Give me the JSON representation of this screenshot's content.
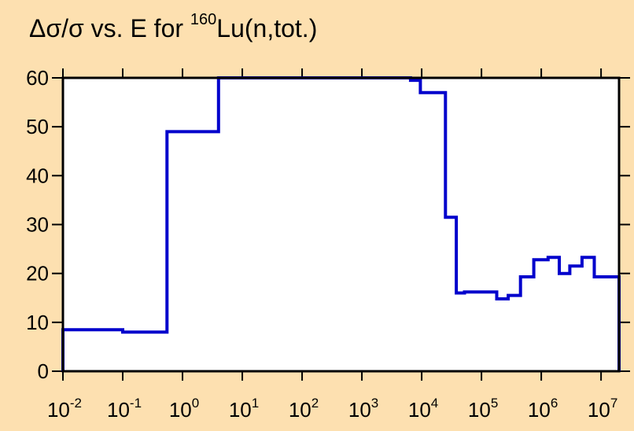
{
  "chart_data": {
    "type": "line",
    "title": {
      "pre": "Δσ/σ vs. E for ",
      "sup": "160",
      "post": "Lu(n,tot.)"
    },
    "xlabel": "",
    "ylabel": "",
    "x_scale": "log",
    "xlim": [
      0.01,
      20000000
    ],
    "ylim": [
      0,
      60
    ],
    "y_ticks": [
      0,
      10,
      20,
      30,
      40,
      50,
      60
    ],
    "x_ticks": [
      {
        "value": 0.01,
        "base": "10",
        "exp": "-2"
      },
      {
        "value": 0.1,
        "base": "10",
        "exp": "-1"
      },
      {
        "value": 1,
        "base": "10",
        "exp": "0"
      },
      {
        "value": 10,
        "base": "10",
        "exp": "1"
      },
      {
        "value": 100,
        "base": "10",
        "exp": "2"
      },
      {
        "value": 1000,
        "base": "10",
        "exp": "3"
      },
      {
        "value": 10000,
        "base": "10",
        "exp": "4"
      },
      {
        "value": 100000,
        "base": "10",
        "exp": "5"
      },
      {
        "value": 1000000,
        "base": "10",
        "exp": "6"
      },
      {
        "value": 10000000,
        "base": "10",
        "exp": "7"
      }
    ],
    "grid": false,
    "line_color": "#0000cc",
    "background": "#fde0b0",
    "series": [
      {
        "style": "step",
        "bins": [
          {
            "x0": 0.01,
            "x1": 0.1,
            "y": 8.5
          },
          {
            "x0": 0.1,
            "x1": 0.55,
            "y": 8.0
          },
          {
            "x0": 0.55,
            "x1": 4,
            "y": 49
          },
          {
            "x0": 4,
            "x1": 6500,
            "y": 60
          },
          {
            "x0": 6500,
            "x1": 9500,
            "y": 59.5
          },
          {
            "x0": 9500,
            "x1": 25000,
            "y": 57
          },
          {
            "x0": 25000,
            "x1": 38000,
            "y": 31.5
          },
          {
            "x0": 38000,
            "x1": 52000,
            "y": 16
          },
          {
            "x0": 52000,
            "x1": 180000,
            "y": 16.2
          },
          {
            "x0": 180000,
            "x1": 280000,
            "y": 14.8
          },
          {
            "x0": 280000,
            "x1": 450000,
            "y": 15.5
          },
          {
            "x0": 450000,
            "x1": 750000,
            "y": 19.3
          },
          {
            "x0": 750000,
            "x1": 1300000,
            "y": 22.8
          },
          {
            "x0": 1300000,
            "x1": 2000000,
            "y": 23.3
          },
          {
            "x0": 2000000,
            "x1": 3000000,
            "y": 20.0
          },
          {
            "x0": 3000000,
            "x1": 4800000,
            "y": 21.5
          },
          {
            "x0": 4800000,
            "x1": 7700000,
            "y": 23.3
          },
          {
            "x0": 7700000,
            "x1": 20000000,
            "y": 19.3
          }
        ]
      }
    ]
  }
}
